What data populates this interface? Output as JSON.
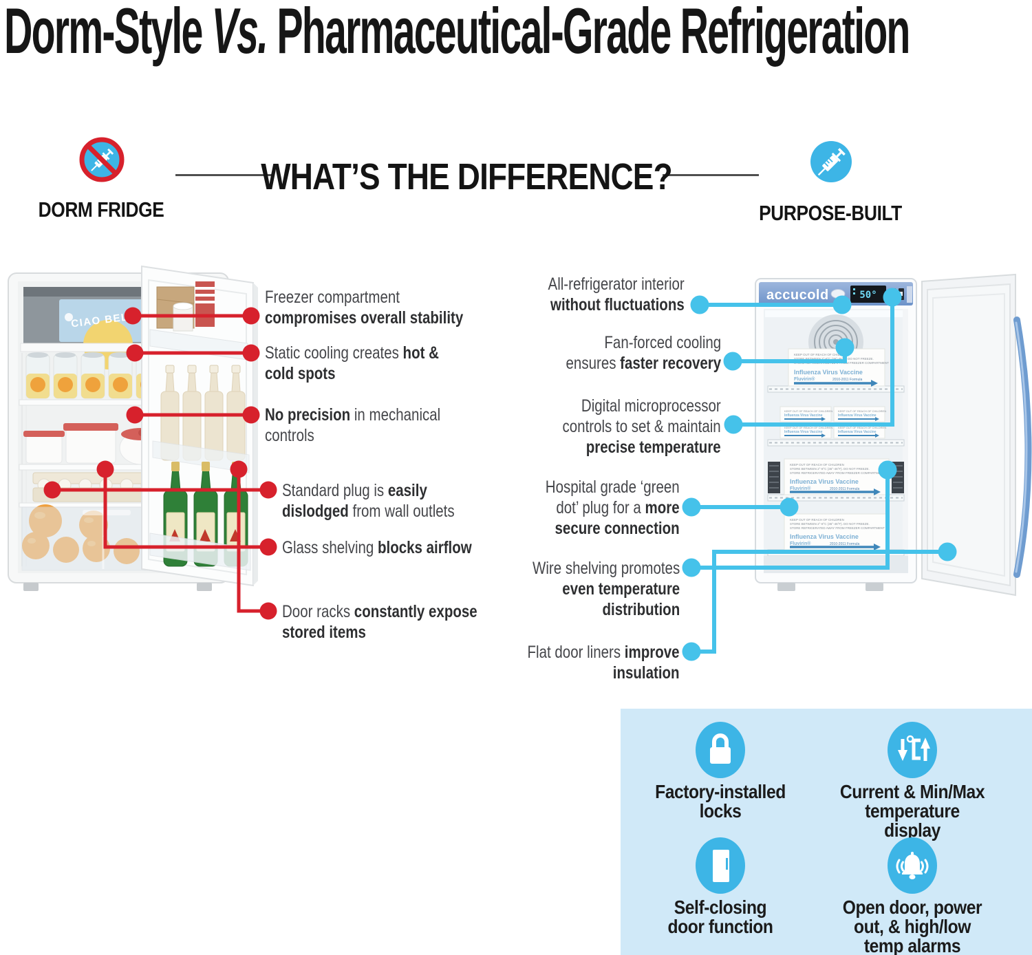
{
  "title_segments": [
    [
      {
        "t": "Dorm-Style "
      },
      {
        "t": "Vs.",
        "i": 1
      },
      {
        "t": " Pharmaceutical-Grade Refrigeration"
      }
    ]
  ],
  "header": {
    "heading": "WHAT’S THE DIFFERENCE?",
    "left_label": "DORM FRIDGE",
    "right_label": "PURPOSE-BUILT",
    "left_icon": "no-syringe-icon",
    "right_icon": "syringe-icon"
  },
  "colors": {
    "red_accent": "#d7212c",
    "cyan_accent": "#45c2ea",
    "icon_blue": "#3db5e6",
    "panel_bg": "#d0e9f8",
    "brand_strip": "#7b9dd1",
    "display_digits": "#6fd8f4"
  },
  "callouts_left": [
    {
      "lines": [
        [
          {
            "t": "Freezer compartment"
          }
        ],
        [
          {
            "t": "compromises overall stability",
            "b": 1
          }
        ]
      ]
    },
    {
      "lines": [
        [
          {
            "t": "Static cooling creates "
          },
          {
            "t": "hot &",
            "b": 1
          }
        ],
        [
          {
            "t": "cold spots",
            "b": 1
          }
        ]
      ]
    },
    {
      "lines": [
        [
          {
            "t": "No precision",
            "b": 1
          },
          {
            "t": " in mechanical"
          }
        ],
        [
          {
            "t": "controls"
          }
        ]
      ]
    },
    {
      "lines": [
        [
          {
            "t": "Standard plug is "
          },
          {
            "t": "easily",
            "b": 1
          }
        ],
        [
          {
            "t": "dislodged",
            "b": 1
          },
          {
            "t": " from wall outlets"
          }
        ]
      ]
    },
    {
      "lines": [
        [
          {
            "t": "Glass shelving "
          },
          {
            "t": "blocks airflow",
            "b": 1
          }
        ]
      ]
    },
    {
      "lines": [
        [
          {
            "t": "Door racks "
          },
          {
            "t": "constantly expose",
            "b": 1
          }
        ],
        [
          {
            "t": "stored items",
            "b": 1
          }
        ]
      ]
    }
  ],
  "callouts_right": [
    {
      "lines": [
        [
          {
            "t": "All-refrigerator interior"
          }
        ],
        [
          {
            "t": "without fluctuations",
            "b": 1
          }
        ]
      ]
    },
    {
      "lines": [
        [
          {
            "t": "Fan-forced cooling"
          }
        ],
        [
          {
            "t": "ensures "
          },
          {
            "t": "faster recovery",
            "b": 1
          }
        ]
      ]
    },
    {
      "lines": [
        [
          {
            "t": "Digital microprocessor"
          }
        ],
        [
          {
            "t": "controls to set & maintain"
          }
        ],
        [
          {
            "t": "precise temperature",
            "b": 1
          }
        ]
      ]
    },
    {
      "lines": [
        [
          {
            "t": "Hospital grade ‘green"
          }
        ],
        [
          {
            "t": "dot’ plug for a "
          },
          {
            "t": "more",
            "b": 1
          }
        ],
        [
          {
            "t": "secure connection",
            "b": 1
          }
        ]
      ]
    },
    {
      "lines": [
        [
          {
            "t": "Wire shelving promotes"
          }
        ],
        [
          {
            "t": "even temperature",
            "b": 1
          }
        ],
        [
          {
            "t": "distribution",
            "b": 1
          }
        ]
      ]
    },
    {
      "lines": [
        [
          {
            "t": "Flat door liners "
          },
          {
            "t": "improve",
            "b": 1
          }
        ],
        [
          {
            "t": "insulation",
            "b": 1
          }
        ]
      ]
    }
  ],
  "dorm_fridge": {
    "freezer_box_text": "CIAO BELLA"
  },
  "medical_fridge": {
    "brand": "accucold",
    "display_value": "50°",
    "box": {
      "warning1": "KEEP OUT OF REACH OF CHILDREN",
      "warning2": "STORE BETWEEN 2°-8°C (36°-46°F). DO NOT FREEZE.",
      "warning3": "STORE REFRIGERATED AWAY FROM FREEZER COMPARTMENT",
      "name": "Influenza Virus Vaccine",
      "sub": "Fluvirin®",
      "formula": "2010-2011 Formula"
    }
  },
  "features": [
    {
      "icon": "lock-icon",
      "lines": [
        "Factory-installed",
        "locks"
      ]
    },
    {
      "icon": "temperature-display-icon",
      "lines": [
        "Current & Min/Max",
        "temperature",
        "display"
      ]
    },
    {
      "icon": "self-closing-door-icon",
      "lines": [
        "Self-closing",
        "door function"
      ]
    },
    {
      "icon": "alarm-bell-icon",
      "lines": [
        "Open door, power",
        "out, & high/low",
        "temp alarms"
      ]
    }
  ]
}
